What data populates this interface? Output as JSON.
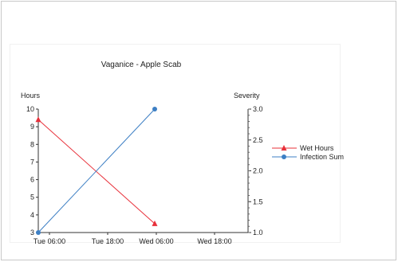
{
  "chart_data": {
    "type": "line",
    "title": "Vaganice - Apple Scab",
    "ylabel": "Hours",
    "y2label": "Severity",
    "ylim": [
      3,
      10
    ],
    "y2lim": [
      1.0,
      3.0
    ],
    "x_ticks": [
      "Tue 06:00",
      "Tue 18:00",
      "Wed 06:00",
      "Wed 18:00"
    ],
    "y_ticks": [
      "3",
      "4",
      "5",
      "6",
      "7",
      "8",
      "9",
      "10"
    ],
    "y2_ticks": [
      "1.0",
      "1.5",
      "2.0",
      "2.5",
      "3.0"
    ],
    "series": [
      {
        "name": "Wet Hours",
        "axis": "left",
        "color": "#e8303a",
        "marker": "triangle",
        "x": [
          "Tue 00:00",
          "Wed 00:00"
        ],
        "values": [
          9.4,
          3.5
        ]
      },
      {
        "name": "Infection Sum",
        "axis": "right",
        "color": "#3d7fc4",
        "marker": "circle",
        "x": [
          "Tue 00:00",
          "Wed 00:00"
        ],
        "values": [
          1.0,
          3.0
        ]
      }
    ],
    "legend_position": "right",
    "grid": false
  }
}
